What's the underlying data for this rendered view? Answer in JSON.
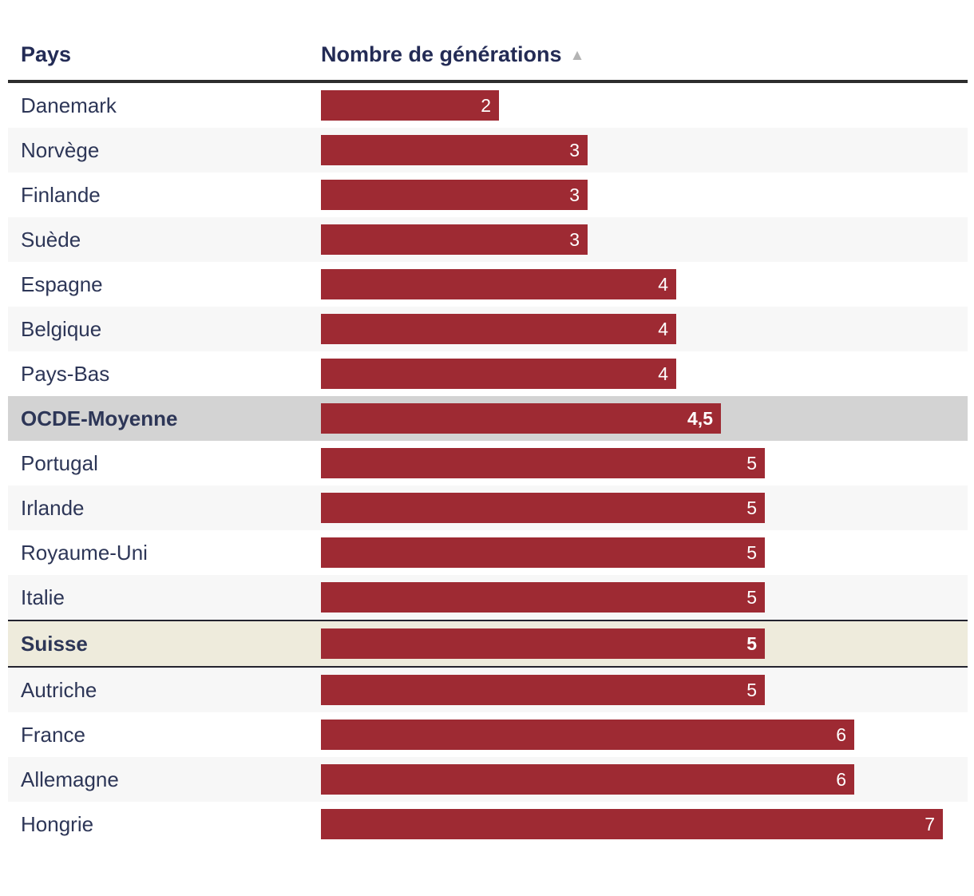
{
  "table": {
    "columns": [
      {
        "label": "Pays"
      },
      {
        "label": "Nombre de générations",
        "sort_icon": "ascending-triangle",
        "sort_icon_glyph": "▲"
      }
    ],
    "rows": [
      {
        "country": "Danemark",
        "value": 2,
        "value_label": "2",
        "highlight": null
      },
      {
        "country": "Norvège",
        "value": 3,
        "value_label": "3",
        "highlight": null
      },
      {
        "country": "Finlande",
        "value": 3,
        "value_label": "3",
        "highlight": null
      },
      {
        "country": "Suède",
        "value": 3,
        "value_label": "3",
        "highlight": null
      },
      {
        "country": "Espagne",
        "value": 4,
        "value_label": "4",
        "highlight": null
      },
      {
        "country": "Belgique",
        "value": 4,
        "value_label": "4",
        "highlight": null
      },
      {
        "country": "Pays-Bas",
        "value": 4,
        "value_label": "4",
        "highlight": null
      },
      {
        "country": "OCDE-Moyenne",
        "value": 4.5,
        "value_label": "4,5",
        "highlight": "ocde"
      },
      {
        "country": "Portugal",
        "value": 5,
        "value_label": "5",
        "highlight": null
      },
      {
        "country": "Irlande",
        "value": 5,
        "value_label": "5",
        "highlight": null
      },
      {
        "country": "Royaume-Uni",
        "value": 5,
        "value_label": "5",
        "highlight": null
      },
      {
        "country": "Italie",
        "value": 5,
        "value_label": "5",
        "highlight": null
      },
      {
        "country": "Suisse",
        "value": 5,
        "value_label": "5",
        "highlight": "suisse"
      },
      {
        "country": "Autriche",
        "value": 5,
        "value_label": "5",
        "highlight": null
      },
      {
        "country": "France",
        "value": 6,
        "value_label": "6",
        "highlight": null
      },
      {
        "country": "Allemagne",
        "value": 6,
        "value_label": "6",
        "highlight": null
      },
      {
        "country": "Hongrie",
        "value": 7,
        "value_label": "7",
        "highlight": null
      }
    ]
  },
  "chart_data": {
    "type": "bar",
    "orientation": "horizontal",
    "title": "",
    "xlabel": "Nombre de générations",
    "ylabel": "Pays",
    "categories": [
      "Danemark",
      "Norvège",
      "Finlande",
      "Suède",
      "Espagne",
      "Belgique",
      "Pays-Bas",
      "OCDE-Moyenne",
      "Portugal",
      "Irlande",
      "Royaume-Uni",
      "Italie",
      "Suisse",
      "Autriche",
      "France",
      "Allemagne",
      "Hongrie"
    ],
    "values": [
      2,
      3,
      3,
      3,
      4,
      4,
      4,
      4.5,
      5,
      5,
      5,
      5,
      5,
      5,
      6,
      6,
      7
    ],
    "xlim": [
      0,
      7
    ],
    "sort": "ascending",
    "grid": false,
    "legend": "none",
    "highlighted_categories": [
      "OCDE-Moyenne",
      "Suisse"
    ],
    "bar_color": "#9e2a33",
    "value_labels": [
      "2",
      "3",
      "3",
      "3",
      "4",
      "4",
      "4",
      "4,5",
      "5",
      "5",
      "5",
      "5",
      "5",
      "5",
      "6",
      "6",
      "7"
    ]
  },
  "colors": {
    "bar": "#9e2a33",
    "header_text": "#232b55",
    "row_text": "#2d3657",
    "stripe_row": "#f7f7f7",
    "ocde_row_background": "#d3d3d3",
    "suisse_row_background": "#eeebdc",
    "header_border": "#2d2d2d",
    "suisse_border": "#23232f",
    "sort_arrow": "#b4b4b4",
    "bar_value_text": "#ffffff"
  }
}
